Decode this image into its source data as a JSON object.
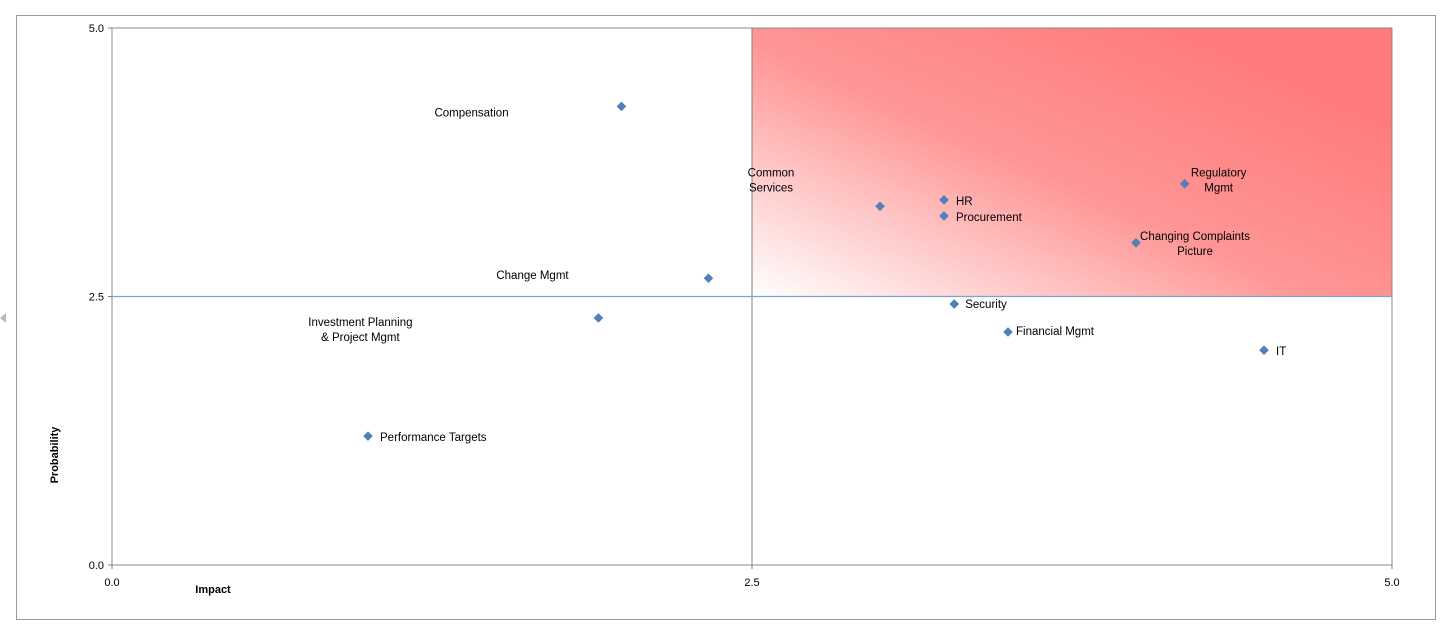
{
  "chart_data": {
    "type": "scatter",
    "title": "",
    "xlabel": "Impact",
    "ylabel": "Probability",
    "xlim": [
      0,
      5
    ],
    "ylim": [
      0,
      5
    ],
    "x_ticks": [
      "0.0",
      "2.5",
      "5.0"
    ],
    "y_ticks": [
      "0.0",
      "2.5",
      "5.0"
    ],
    "quadrant_lines": {
      "x": 2.5,
      "y": 2.5
    },
    "highlight_quadrant": {
      "x_range": [
        2.5,
        5.0
      ],
      "y_range": [
        2.5,
        5.0
      ],
      "color": "#ff7b7b"
    },
    "marker_color": "#4f81bd",
    "grid": false,
    "points": [
      {
        "label": "Compensation",
        "x": 1.99,
        "y": 4.27
      },
      {
        "label": "Common Services",
        "x": 3.0,
        "y": 3.34
      },
      {
        "label": "HR",
        "x": 3.25,
        "y": 3.4
      },
      {
        "label": "Procurement",
        "x": 3.25,
        "y": 3.25
      },
      {
        "label": "Regulatory Mgmt",
        "x": 4.19,
        "y": 3.55
      },
      {
        "label": "Changing  Complaints Picture",
        "x": 4.0,
        "y": 3.0
      },
      {
        "label": "Change Mgmt",
        "x": 2.33,
        "y": 2.67
      },
      {
        "label": "Security",
        "x": 3.29,
        "y": 2.43
      },
      {
        "label": "Investment Planning & Project Mgmt",
        "x": 1.9,
        "y": 2.3
      },
      {
        "label": "Financial Mgmt",
        "x": 3.5,
        "y": 2.17
      },
      {
        "label": "IT",
        "x": 4.5,
        "y": 2.0
      },
      {
        "label": "Performance Targets",
        "x": 1.0,
        "y": 1.2
      }
    ]
  }
}
